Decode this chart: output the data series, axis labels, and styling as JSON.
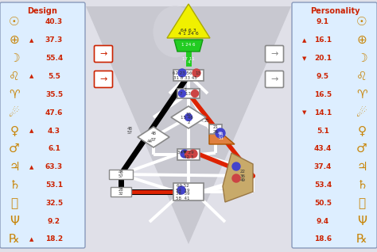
{
  "design_title": "Design",
  "personality_title": "Personality",
  "design_entries": [
    {
      "symbol": "☉",
      "value": "40.3",
      "arrow": ""
    },
    {
      "symbol": "⊕",
      "value": "37.3",
      "arrow": "▲"
    },
    {
      "symbol": "☽",
      "value": "55.4",
      "arrow": ""
    },
    {
      "symbol": "♌",
      "value": "5.5",
      "arrow": "▲"
    },
    {
      "symbol": "♈",
      "value": "35.5",
      "arrow": ""
    },
    {
      "symbol": "☄",
      "value": "47.6",
      "arrow": ""
    },
    {
      "symbol": "♀",
      "value": "4.3",
      "arrow": "▲"
    },
    {
      "symbol": "♂",
      "value": "6.1",
      "arrow": ""
    },
    {
      "symbol": "♃",
      "value": "63.3",
      "arrow": "▲"
    },
    {
      "symbol": "♄",
      "value": "53.1",
      "arrow": ""
    },
    {
      "symbol": "⛽",
      "value": "32.5",
      "arrow": ""
    },
    {
      "symbol": "Ψ",
      "value": "9.2",
      "arrow": ""
    },
    {
      "symbol": "℞",
      "value": "18.2",
      "arrow": "▲"
    }
  ],
  "personality_entries": [
    {
      "symbol": "☉",
      "value": "9.1",
      "arrow": ""
    },
    {
      "symbol": "⊕",
      "value": "16.1",
      "arrow": "▲"
    },
    {
      "symbol": "☽",
      "value": "20.1",
      "arrow": "▼"
    },
    {
      "symbol": "♌",
      "value": "9.5",
      "arrow": ""
    },
    {
      "symbol": "♈",
      "value": "16.5",
      "arrow": ""
    },
    {
      "symbol": "☄",
      "value": "14.1",
      "arrow": "▼"
    },
    {
      "symbol": "♀",
      "value": "5.1",
      "arrow": ""
    },
    {
      "symbol": "♂",
      "value": "43.4",
      "arrow": ""
    },
    {
      "symbol": "♃",
      "value": "37.4",
      "arrow": ""
    },
    {
      "symbol": "♄",
      "value": "53.4",
      "arrow": ""
    },
    {
      "symbol": "⛽",
      "value": "50.5",
      "arrow": ""
    },
    {
      "symbol": "Ψ",
      "value": "9.4",
      "arrow": ""
    },
    {
      "symbol": "℞",
      "value": "18.6",
      "arrow": ""
    }
  ],
  "bg_color": "#e0e0e8",
  "panel_color": "#ddeeff",
  "panel_border": "#8899bb",
  "title_color": "#cc2200",
  "symbol_color": "#c8860a",
  "value_color": "#cc2200",
  "arrow_color": "#cc2200"
}
